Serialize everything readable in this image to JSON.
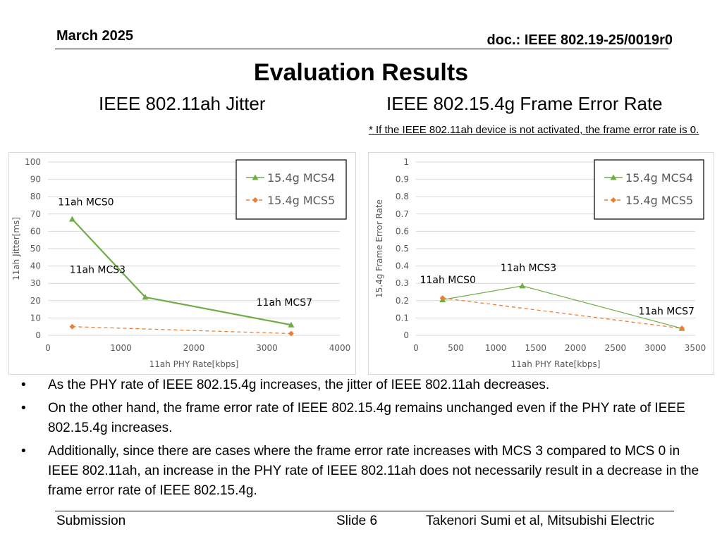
{
  "header": {
    "date": "March 2025",
    "doc": "doc.: IEEE 802.19-25/0019r0"
  },
  "title": "Evaluation Results",
  "subtitles": {
    "left": "IEEE 802.11ah Jitter",
    "right": "IEEE 802.15.4g Frame Error Rate"
  },
  "note": "* If the IEEE 802.11ah device is not activated, the frame error rate is 0.",
  "colors": {
    "mcs4": "#70ad47",
    "mcs5": "#ed7d31",
    "grid": "#d9d9d9",
    "axis_text": "#595959"
  },
  "chart_data": [
    {
      "type": "line",
      "xlabel": "11ah PHY Rate[kbps]",
      "ylabel": "11ah Jitter[ms]",
      "xlim": [
        0,
        4000
      ],
      "ylim": [
        0,
        100
      ],
      "xticks": [
        0,
        1000,
        2000,
        3000,
        4000
      ],
      "yticks": [
        0,
        10,
        20,
        30,
        40,
        50,
        60,
        70,
        80,
        90,
        100
      ],
      "grid": "horizontal",
      "legend_position": "top-right",
      "series": [
        {
          "name": "15.4g MCS4",
          "marker": "triangle",
          "dash": "solid",
          "points": [
            [
              333,
              67
            ],
            [
              1333,
              22
            ],
            [
              3333,
              6
            ]
          ]
        },
        {
          "name": "15.4g MCS5",
          "marker": "diamond",
          "dash": "dashed",
          "points": [
            [
              333,
              5
            ],
            [
              3333,
              1
            ]
          ]
        }
      ],
      "annotations": [
        {
          "text": "11ah MCS0",
          "x": 520,
          "y": 75
        },
        {
          "text": "11ah MCS3",
          "x": 680,
          "y": 36
        },
        {
          "text": "11ah MCS7",
          "x": 3240,
          "y": 17
        }
      ]
    },
    {
      "type": "line",
      "xlabel": "11ah PHY Rate[kbps]",
      "ylabel": "15.4g Frame Error Rate",
      "xlim": [
        0,
        3500
      ],
      "ylim": [
        0,
        1
      ],
      "xticks": [
        0,
        500,
        1000,
        1500,
        2000,
        2500,
        3000,
        3500
      ],
      "yticks": [
        0,
        0.1,
        0.2,
        0.3,
        0.4,
        0.5,
        0.6,
        0.7,
        0.8,
        0.9,
        1
      ],
      "grid": "horizontal",
      "legend_position": "top-right",
      "series": [
        {
          "name": "15.4g MCS4",
          "marker": "triangle",
          "dash": "solid",
          "points": [
            [
              333,
              0.205
            ],
            [
              1333,
              0.285
            ],
            [
              3333,
              0.04
            ]
          ]
        },
        {
          "name": "15.4g MCS5",
          "marker": "diamond",
          "dash": "dashed",
          "points": [
            [
              333,
              0.215
            ],
            [
              3333,
              0.04
            ]
          ]
        }
      ],
      "annotations": [
        {
          "text": "11ah MCS0",
          "x": 400,
          "y": 0.3
        },
        {
          "text": "11ah MCS3",
          "x": 1410,
          "y": 0.37
        },
        {
          "text": "11ah MCS7",
          "x": 3140,
          "y": 0.12
        }
      ]
    }
  ],
  "bullets": [
    {
      "marker": "•",
      "text": "As the PHY rate of IEEE 802.15.4g increases, the jitter of IEEE 802.11ah decreases."
    },
    {
      "marker": "•",
      "text": "On the other hand, the frame error rate of IEEE 802.15.4g remains unchanged even if the PHY rate of IEEE 802.15.4g increases."
    },
    {
      "marker": "•",
      "text": "Additionally, since there are cases where the frame error rate increases with MCS 3 compared to MCS 0 in IEEE 802.11ah, an increase in the PHY rate of IEEE 802.11ah does not necessarily result in a decrease in the frame error rate of IEEE 802.15.4g."
    }
  ],
  "footer": {
    "left": "Submission",
    "slide": "Slide 6",
    "author": "Takenori Sumi et al, Mitsubishi Electric"
  }
}
